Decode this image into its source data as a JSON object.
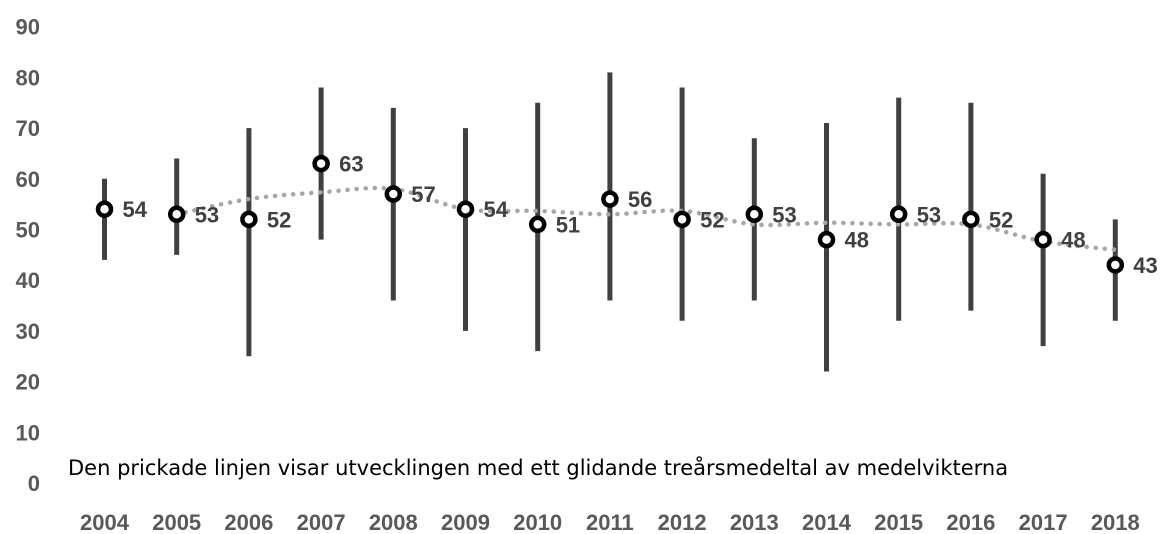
{
  "chart_data": {
    "type": "scatter",
    "title": "",
    "xlabel": "",
    "ylabel": "",
    "ylim": [
      0,
      90
    ],
    "y_ticks": [
      0,
      10,
      20,
      30,
      40,
      50,
      60,
      70,
      80,
      90
    ],
    "grid": false,
    "legend": "none",
    "categories": [
      "2004",
      "2005",
      "2006",
      "2007",
      "2008",
      "2009",
      "2010",
      "2011",
      "2012",
      "2013",
      "2014",
      "2015",
      "2016",
      "2017",
      "2018"
    ],
    "series": [
      {
        "kind": "point",
        "values": [
          54,
          53,
          52,
          63,
          57,
          54,
          51,
          56,
          52,
          53,
          48,
          53,
          52,
          48,
          43
        ],
        "data_labels": [
          "54",
          "53",
          "52",
          "63",
          "57",
          "54",
          "51",
          "56",
          "52",
          "53",
          "48",
          "53",
          "52",
          "48",
          "43"
        ]
      },
      {
        "kind": "range",
        "low": [
          44,
          45,
          25,
          48,
          36,
          30,
          26,
          36,
          32,
          36,
          22,
          32,
          34,
          27,
          32
        ],
        "high": [
          60,
          64,
          70,
          78,
          74,
          70,
          75,
          81,
          78,
          68,
          71,
          76,
          75,
          61,
          52
        ]
      },
      {
        "kind": "moving-average",
        "period": 3,
        "style": "dotted"
      }
    ],
    "annotations": [
      "Den prickade linjen visar utvecklingen med ett glidande treårsmedeltal av medelvikterna"
    ]
  },
  "colors": {
    "range_bar": "#404040",
    "marker": "#000000",
    "trendline": "#a6a6a6",
    "tick_text": "#595959",
    "data_label": "#404040"
  }
}
